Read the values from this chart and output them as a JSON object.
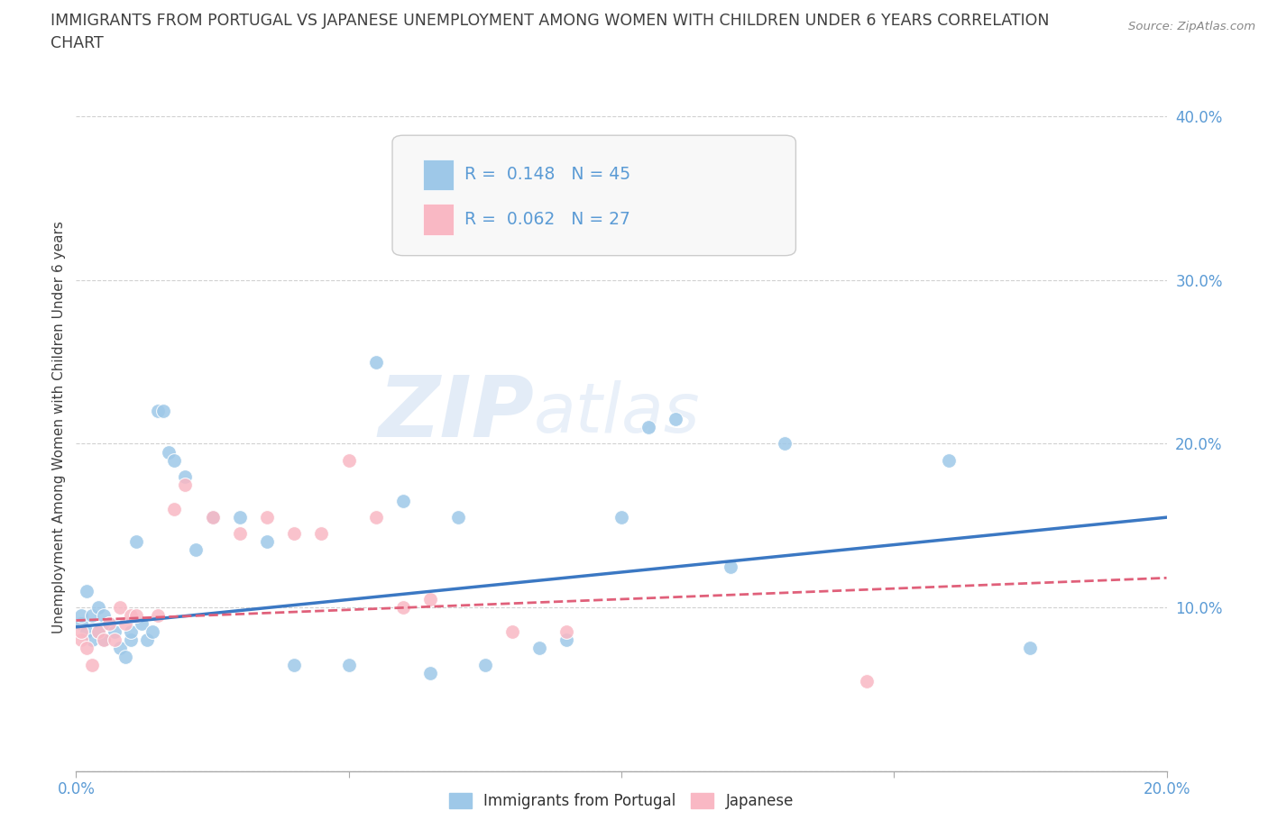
{
  "title_line1": "IMMIGRANTS FROM PORTUGAL VS JAPANESE UNEMPLOYMENT AMONG WOMEN WITH CHILDREN UNDER 6 YEARS CORRELATION",
  "title_line2": "CHART",
  "source": "Source: ZipAtlas.com",
  "ylabel": "Unemployment Among Women with Children Under 6 years",
  "xlim": [
    0.0,
    0.2
  ],
  "ylim": [
    0.0,
    0.42
  ],
  "xticks": [
    0.0,
    0.05,
    0.1,
    0.15,
    0.2
  ],
  "yticks": [
    0.0,
    0.1,
    0.2,
    0.3,
    0.4
  ],
  "blue_R": 0.148,
  "blue_N": 45,
  "pink_R": 0.062,
  "pink_N": 27,
  "blue_color": "#9ec8e8",
  "pink_color": "#f9b8c4",
  "line_blue": "#3b78c3",
  "line_pink": "#e0607a",
  "watermark_zip": "ZIP",
  "watermark_atlas": "atlas",
  "blue_scatter_x": [
    0.001,
    0.001,
    0.002,
    0.002,
    0.003,
    0.003,
    0.004,
    0.004,
    0.005,
    0.005,
    0.006,
    0.007,
    0.008,
    0.009,
    0.01,
    0.01,
    0.011,
    0.012,
    0.013,
    0.014,
    0.015,
    0.016,
    0.017,
    0.018,
    0.02,
    0.022,
    0.025,
    0.03,
    0.035,
    0.04,
    0.05,
    0.055,
    0.06,
    0.065,
    0.07,
    0.075,
    0.085,
    0.09,
    0.1,
    0.105,
    0.11,
    0.12,
    0.13,
    0.16,
    0.175
  ],
  "blue_scatter_y": [
    0.09,
    0.095,
    0.085,
    0.11,
    0.08,
    0.095,
    0.085,
    0.1,
    0.08,
    0.095,
    0.09,
    0.085,
    0.075,
    0.07,
    0.08,
    0.085,
    0.14,
    0.09,
    0.08,
    0.085,
    0.22,
    0.22,
    0.195,
    0.19,
    0.18,
    0.135,
    0.155,
    0.155,
    0.14,
    0.065,
    0.065,
    0.25,
    0.165,
    0.06,
    0.155,
    0.065,
    0.075,
    0.08,
    0.155,
    0.21,
    0.215,
    0.125,
    0.2,
    0.19,
    0.075
  ],
  "pink_scatter_x": [
    0.001,
    0.001,
    0.002,
    0.003,
    0.004,
    0.005,
    0.006,
    0.007,
    0.008,
    0.009,
    0.01,
    0.011,
    0.015,
    0.018,
    0.02,
    0.025,
    0.03,
    0.035,
    0.04,
    0.045,
    0.05,
    0.055,
    0.06,
    0.065,
    0.08,
    0.09,
    0.145
  ],
  "pink_scatter_y": [
    0.08,
    0.085,
    0.075,
    0.065,
    0.085,
    0.08,
    0.09,
    0.08,
    0.1,
    0.09,
    0.095,
    0.095,
    0.095,
    0.16,
    0.175,
    0.155,
    0.145,
    0.155,
    0.145,
    0.145,
    0.19,
    0.155,
    0.1,
    0.105,
    0.085,
    0.085,
    0.055
  ],
  "blue_line_y_start": 0.088,
  "blue_line_y_end": 0.155,
  "pink_line_y_start": 0.092,
  "pink_line_y_end": 0.118,
  "grid_color": "#cccccc",
  "bg_color": "#ffffff",
  "title_color": "#404040",
  "axis_label_color": "#404040",
  "tick_color": "#5b9bd5",
  "legend_box_color": "#f8f8f8"
}
